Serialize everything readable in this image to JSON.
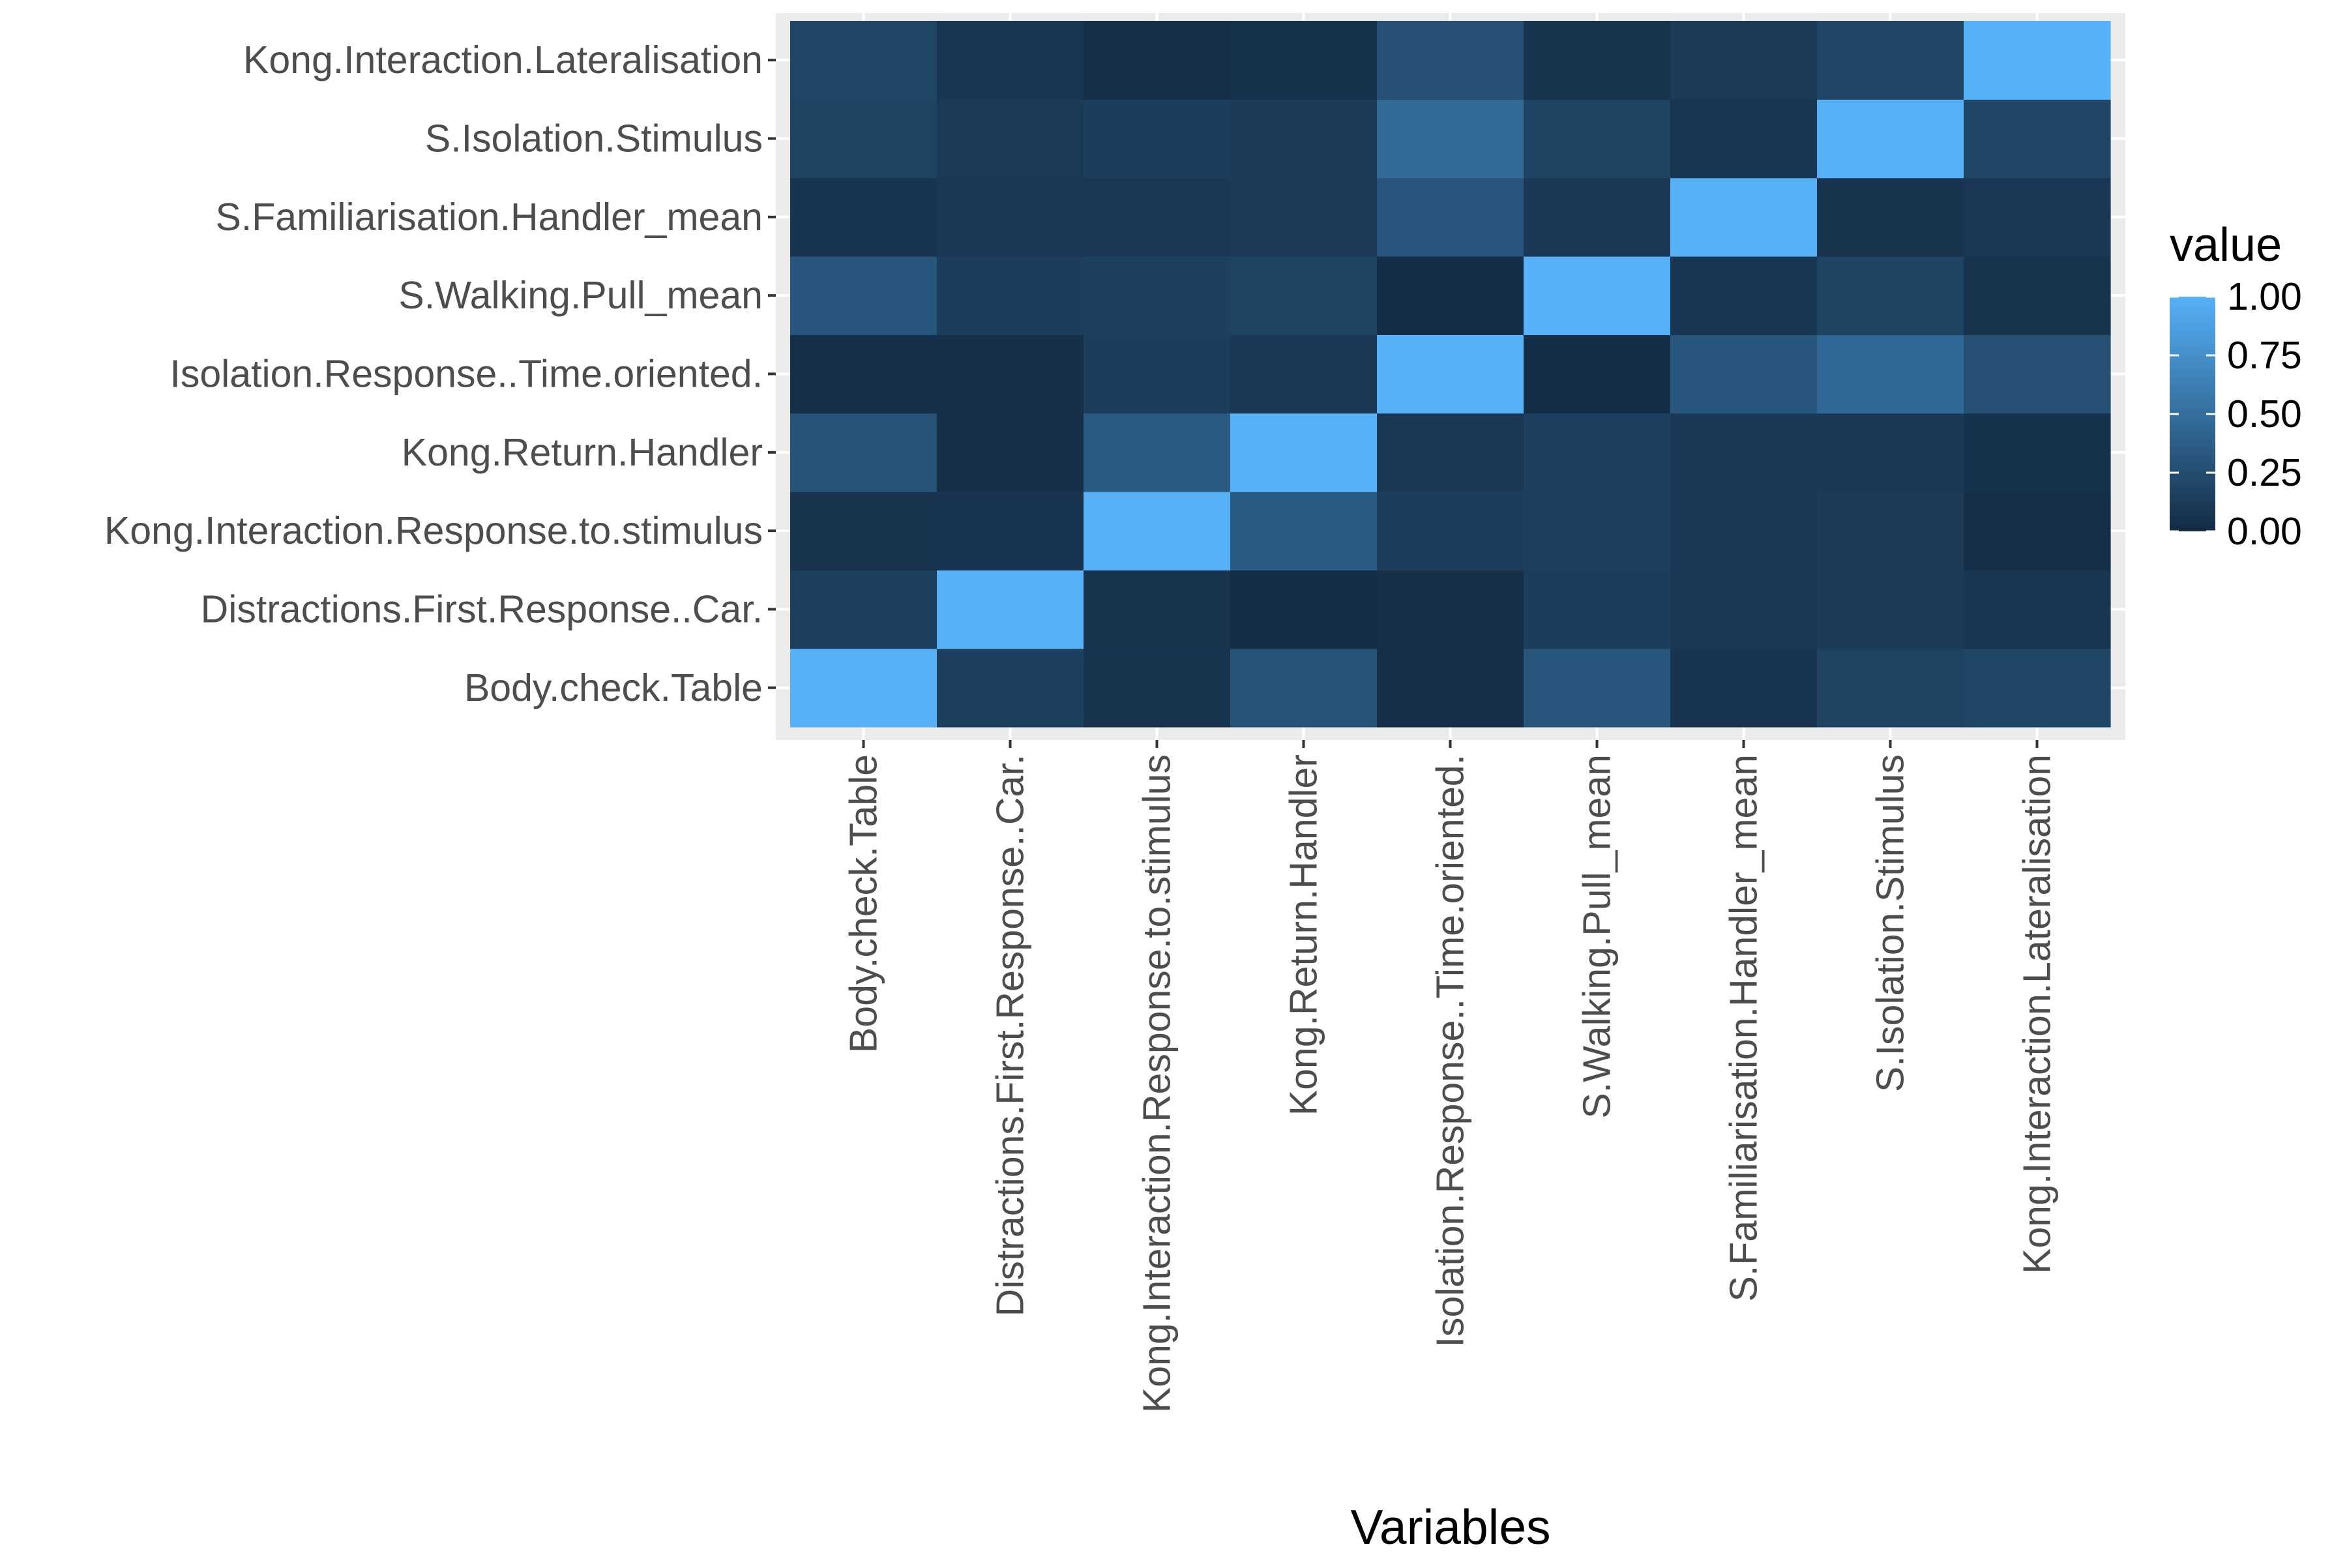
{
  "chart_data": {
    "type": "heatmap",
    "title": "",
    "xlabel": "Variables",
    "ylabel": "",
    "x_categories": [
      "Body.check.Table",
      "Distractions.First.Response..Car.",
      "Kong.Interaction.Response.to.stimulus",
      "Kong.Return.Handler",
      "Isolation.Response..Time.oriented.",
      "S.Walking.Pull_mean",
      "S.Familiarisation.Handler_mean",
      "S.Isolation.Stimulus",
      "Kong.Interaction.Lateralisation"
    ],
    "y_categories": [
      "Body.check.Table",
      "Distractions.First.Response..Car.",
      "Kong.Interaction.Response.to.stimulus",
      "Kong.Return.Handler",
      "Isolation.Response..Time.oriented.",
      "S.Walking.Pull_mean",
      "S.Familiarisation.Handler_mean",
      "S.Isolation.Stimulus",
      "Kong.Interaction.Lateralisation"
    ],
    "values": [
      [
        1.0,
        0.15,
        0.06,
        0.3,
        0.03,
        0.32,
        0.07,
        0.18,
        0.2
      ],
      [
        0.15,
        1.0,
        0.06,
        0.02,
        0.04,
        0.14,
        0.1,
        0.11,
        0.09
      ],
      [
        0.06,
        0.07,
        1.0,
        0.35,
        0.14,
        0.16,
        0.1,
        0.12,
        0.03
      ],
      [
        0.3,
        0.03,
        0.35,
        1.0,
        0.1,
        0.16,
        0.1,
        0.1,
        0.05
      ],
      [
        0.03,
        0.04,
        0.14,
        0.1,
        1.0,
        0.02,
        0.31,
        0.45,
        0.28
      ],
      [
        0.32,
        0.14,
        0.16,
        0.18,
        0.02,
        1.0,
        0.09,
        0.18,
        0.06
      ],
      [
        0.07,
        0.1,
        0.1,
        0.12,
        0.31,
        0.1,
        1.0,
        0.06,
        0.1
      ],
      [
        0.18,
        0.11,
        0.14,
        0.12,
        0.47,
        0.18,
        0.08,
        1.0,
        0.2
      ],
      [
        0.2,
        0.08,
        0.03,
        0.05,
        0.28,
        0.06,
        0.12,
        0.2,
        1.0
      ]
    ],
    "value_range": [
      0,
      1
    ],
    "legend": {
      "title": "value",
      "ticks": [
        "1.00",
        "0.75",
        "0.50",
        "0.25",
        "0.00"
      ],
      "tick_values": [
        1.0,
        0.75,
        0.5,
        0.25,
        0.0
      ],
      "placement": "right"
    },
    "colors": {
      "low": "#132B43",
      "high": "#56B1F7",
      "panel_background": "#EBEBEB",
      "grid": "#FFFFFF",
      "text": "#4D4D4D"
    },
    "grid": true
  }
}
